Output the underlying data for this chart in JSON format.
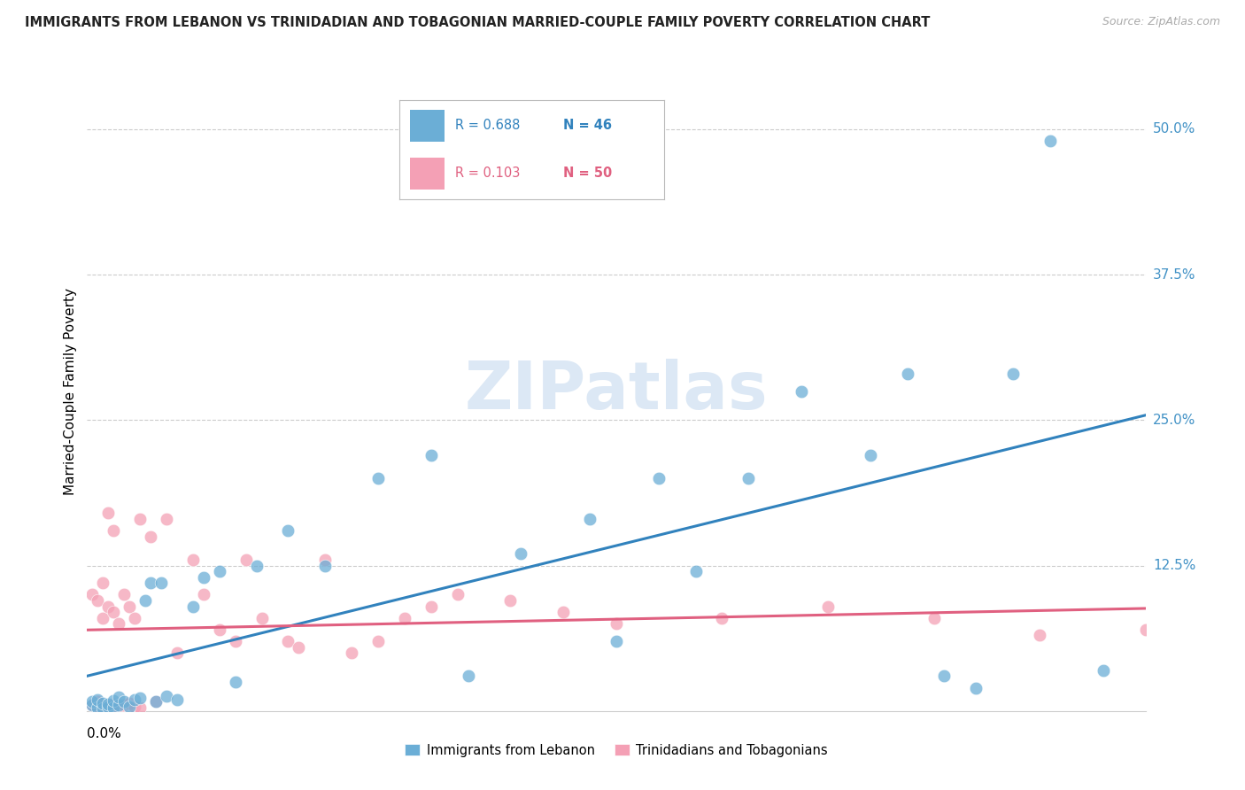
{
  "title": "IMMIGRANTS FROM LEBANON VS TRINIDADIAN AND TOBAGONIAN MARRIED-COUPLE FAMILY POVERTY CORRELATION CHART",
  "source": "Source: ZipAtlas.com",
  "ylabel": "Married-Couple Family Poverty",
  "xlim": [
    0.0,
    0.2
  ],
  "ylim": [
    0.0,
    0.55
  ],
  "watermark": "ZIPatlas",
  "blue_color": "#6baed6",
  "pink_color": "#f4a0b5",
  "blue_line_color": "#3182bd",
  "pink_line_color": "#e06080",
  "grid_color": "#cccccc",
  "right_label_color": "#4292c6",
  "ytick_vals": [
    0.125,
    0.25,
    0.375,
    0.5
  ],
  "ytick_labels": [
    "12.5%",
    "25.0%",
    "37.5%",
    "50.0%"
  ],
  "leb_x": [
    0.001,
    0.001,
    0.002,
    0.002,
    0.003,
    0.003,
    0.004,
    0.004,
    0.005,
    0.005,
    0.006,
    0.006,
    0.007,
    0.008,
    0.009,
    0.01,
    0.011,
    0.012,
    0.013,
    0.014,
    0.015,
    0.017,
    0.02,
    0.022,
    0.025,
    0.028,
    0.032,
    0.038,
    0.045,
    0.055,
    0.065,
    0.072,
    0.082,
    0.095,
    0.1,
    0.108,
    0.115,
    0.125,
    0.135,
    0.148,
    0.155,
    0.162,
    0.168,
    0.175,
    0.182,
    0.192
  ],
  "leb_y": [
    0.005,
    0.008,
    0.003,
    0.01,
    0.002,
    0.007,
    0.004,
    0.006,
    0.003,
    0.009,
    0.005,
    0.012,
    0.008,
    0.004,
    0.01,
    0.011,
    0.095,
    0.11,
    0.008,
    0.11,
    0.013,
    0.01,
    0.09,
    0.115,
    0.12,
    0.025,
    0.125,
    0.155,
    0.125,
    0.2,
    0.22,
    0.03,
    0.135,
    0.165,
    0.06,
    0.2,
    0.12,
    0.2,
    0.275,
    0.22,
    0.29,
    0.03,
    0.02,
    0.29,
    0.49,
    0.035
  ],
  "tri_x": [
    0.001,
    0.001,
    0.002,
    0.002,
    0.002,
    0.003,
    0.003,
    0.003,
    0.004,
    0.004,
    0.004,
    0.005,
    0.005,
    0.005,
    0.006,
    0.006,
    0.007,
    0.007,
    0.008,
    0.008,
    0.009,
    0.009,
    0.01,
    0.01,
    0.012,
    0.013,
    0.015,
    0.017,
    0.02,
    0.022,
    0.025,
    0.028,
    0.03,
    0.033,
    0.038,
    0.04,
    0.045,
    0.05,
    0.055,
    0.06,
    0.065,
    0.07,
    0.08,
    0.09,
    0.1,
    0.12,
    0.14,
    0.16,
    0.18,
    0.2
  ],
  "tri_y": [
    0.005,
    0.1,
    0.003,
    0.008,
    0.095,
    0.004,
    0.11,
    0.08,
    0.002,
    0.09,
    0.17,
    0.006,
    0.085,
    0.155,
    0.003,
    0.075,
    0.005,
    0.1,
    0.007,
    0.09,
    0.004,
    0.08,
    0.003,
    0.165,
    0.15,
    0.008,
    0.165,
    0.05,
    0.13,
    0.1,
    0.07,
    0.06,
    0.13,
    0.08,
    0.06,
    0.055,
    0.13,
    0.05,
    0.06,
    0.08,
    0.09,
    0.1,
    0.095,
    0.085,
    0.075,
    0.08,
    0.09,
    0.08,
    0.065,
    0.07
  ]
}
